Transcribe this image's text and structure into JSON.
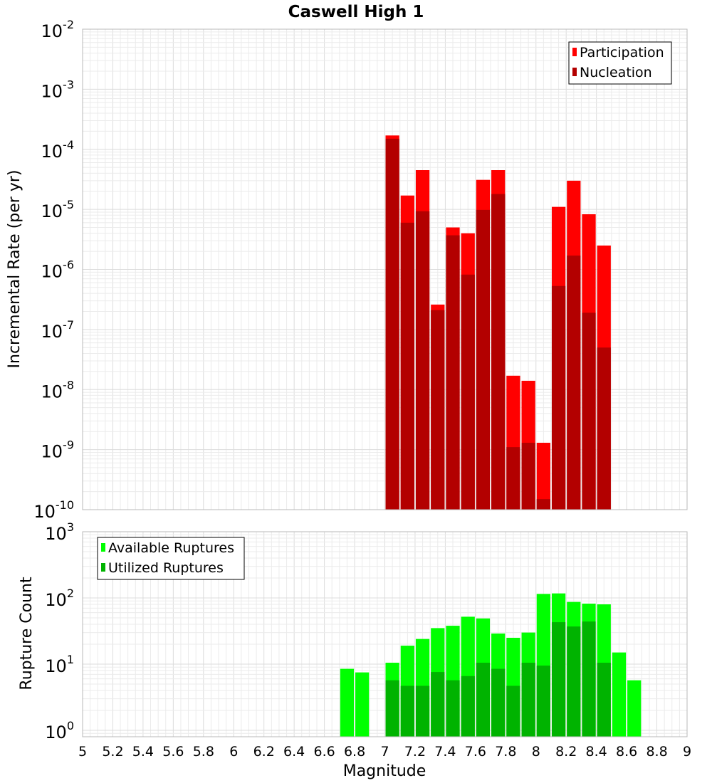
{
  "chart_data": [
    {
      "id": "rate",
      "type": "bar",
      "title": "Caswell High 1",
      "xlabel": "",
      "ylabel": "Incremental Rate (per yr)",
      "yscale": "log",
      "ylim": [
        1e-10,
        0.01
      ],
      "xlim": [
        5,
        9
      ],
      "y_ticks": [
        {
          "base": "10",
          "exp": "-10",
          "value": 1e-10
        },
        {
          "base": "10",
          "exp": "-9",
          "value": 1e-09
        },
        {
          "base": "10",
          "exp": "-8",
          "value": 1e-08
        },
        {
          "base": "10",
          "exp": "-7",
          "value": 1e-07
        },
        {
          "base": "10",
          "exp": "-6",
          "value": 1e-06
        },
        {
          "base": "10",
          "exp": "-5",
          "value": 1e-05
        },
        {
          "base": "10",
          "exp": "-4",
          "value": 0.0001
        },
        {
          "base": "10",
          "exp": "-3",
          "value": 0.001
        },
        {
          "base": "10",
          "exp": "-2",
          "value": 0.01
        }
      ],
      "legend": {
        "placement": "top-right"
      },
      "series": [
        {
          "name": "Participation",
          "color": "#ff0000",
          "x": [
            7.05,
            7.15,
            7.25,
            7.35,
            7.45,
            7.55,
            7.65,
            7.75,
            7.85,
            7.95,
            8.05,
            8.15,
            8.25,
            8.35,
            8.45
          ],
          "values": [
            0.00017,
            1.7e-05,
            4.5e-05,
            2.6e-07,
            5e-06,
            4e-06,
            3.1e-05,
            4.5e-05,
            1.7e-08,
            1.4e-08,
            1.3e-09,
            1.1e-05,
            3e-05,
            8.3e-06,
            2.5e-06
          ]
        },
        {
          "name": "Nucleation",
          "color": "#b30000",
          "x": [
            7.05,
            7.15,
            7.25,
            7.35,
            7.45,
            7.55,
            7.65,
            7.75,
            7.85,
            7.95,
            8.05,
            8.15,
            8.25,
            8.35,
            8.45
          ],
          "values": [
            0.00015,
            6e-06,
            9.3e-06,
            2.1e-07,
            3.7e-06,
            8.2e-07,
            9.8e-06,
            1.8e-05,
            1.1e-09,
            1.3e-09,
            1.5e-10,
            5.3e-07,
            1.7e-06,
            1.9e-07,
            5e-08
          ]
        }
      ]
    },
    {
      "id": "count",
      "type": "bar",
      "title": "",
      "xlabel": "Magnitude",
      "ylabel": "Rupture Count",
      "yscale": "log",
      "ylim": [
        0.8,
        1000
      ],
      "xlim": [
        5,
        9
      ],
      "x_ticks": [
        "5",
        "5.2",
        "5.4",
        "5.6",
        "5.8",
        "6",
        "6.2",
        "6.4",
        "6.6",
        "6.8",
        "7",
        "7.2",
        "7.4",
        "7.6",
        "7.8",
        "8",
        "8.2",
        "8.4",
        "8.6",
        "8.8",
        "9"
      ],
      "y_ticks": [
        {
          "base": "10",
          "exp": "0",
          "value": 1
        },
        {
          "base": "10",
          "exp": "1",
          "value": 10
        },
        {
          "base": "10",
          "exp": "2",
          "value": 100
        },
        {
          "base": "10",
          "exp": "3",
          "value": 1000
        }
      ],
      "legend": {
        "placement": "top-left"
      },
      "series": [
        {
          "name": "Available Ruptures",
          "color": "#00ff00",
          "x": [
            6.75,
            6.85,
            7.05,
            7.15,
            7.25,
            7.35,
            7.45,
            7.55,
            7.65,
            7.75,
            7.85,
            7.95,
            8.05,
            8.15,
            8.25,
            8.35,
            8.45,
            8.55,
            8.65
          ],
          "values": [
            8.5,
            7.5,
            10.5,
            19,
            24,
            35,
            38,
            52,
            49,
            29,
            25,
            30,
            115,
            117,
            87,
            82,
            80,
            15,
            5.7
          ]
        },
        {
          "name": "Utilized Ruptures",
          "color": "#00b300",
          "x": [
            7.05,
            7.15,
            7.25,
            7.35,
            7.45,
            7.55,
            7.65,
            7.75,
            7.85,
            7.95,
            8.05,
            8.15,
            8.25,
            8.35,
            8.45
          ],
          "values": [
            5.7,
            4.7,
            4.7,
            7.6,
            5.7,
            6.6,
            10.5,
            8.5,
            4.7,
            10.5,
            9.5,
            43,
            37,
            44,
            10.5
          ]
        }
      ]
    }
  ]
}
